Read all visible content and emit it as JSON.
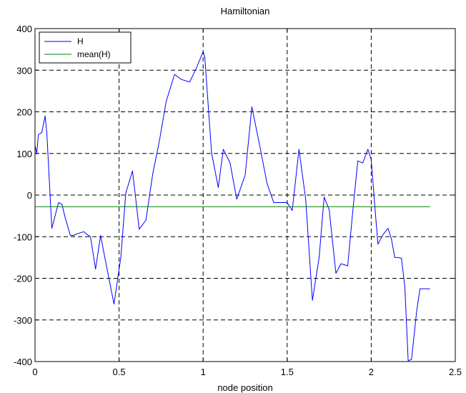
{
  "chart_data": {
    "type": "line",
    "title": "Hamiltonian",
    "xlabel": "node position",
    "ylabel": "",
    "xlim": [
      0,
      2.5
    ],
    "ylim": [
      -400,
      400
    ],
    "xticks": [
      0,
      0.5,
      1,
      1.5,
      2,
      2.5
    ],
    "yticks": [
      -400,
      -300,
      -200,
      -100,
      0,
      100,
      200,
      300,
      400
    ],
    "xtick_labels": [
      "0",
      "0.5",
      "1",
      "1.5",
      "2",
      "2.5"
    ],
    "ytick_labels": [
      "-400",
      "-300",
      "-200",
      "-100",
      "0",
      "100",
      "200",
      "300",
      "400"
    ],
    "grid": true,
    "legend_position": "top-left",
    "series": [
      {
        "name": "H",
        "color": "#0000ff",
        "x": [
          0,
          0.01,
          0.02,
          0.04,
          0.06,
          0.07,
          0.1,
          0.14,
          0.16,
          0.18,
          0.21,
          0.23,
          0.25,
          0.29,
          0.31,
          0.33,
          0.36,
          0.39,
          0.42,
          0.47,
          0.51,
          0.54,
          0.58,
          0.62,
          0.66,
          0.7,
          0.74,
          0.78,
          0.83,
          0.87,
          0.92,
          0.96,
          1.0,
          1.01,
          1.05,
          1.09,
          1.12,
          1.16,
          1.2,
          1.25,
          1.29,
          1.34,
          1.38,
          1.42,
          1.46,
          1.5,
          1.53,
          1.57,
          1.61,
          1.65,
          1.69,
          1.72,
          1.75,
          1.79,
          1.82,
          1.86,
          1.89,
          1.92,
          1.95,
          1.98,
          2.0,
          2.02,
          2.04,
          2.07,
          2.1,
          2.12,
          2.14,
          2.16,
          2.18,
          2.2,
          2.22,
          2.24,
          2.27,
          2.29,
          2.3,
          2.31,
          2.32,
          2.35
        ],
        "y": [
          120,
          100,
          145,
          150,
          190,
          150,
          -80,
          -18,
          -22,
          -55,
          -97,
          -97,
          -93,
          -88,
          -95,
          -100,
          -178,
          -97,
          -160,
          -262,
          -150,
          5,
          58,
          -82,
          -60,
          50,
          130,
          225,
          290,
          278,
          272,
          305,
          345,
          330,
          102,
          18,
          110,
          78,
          -10,
          48,
          212,
          112,
          28,
          -18,
          -18,
          -18,
          -37,
          110,
          -10,
          -253,
          -150,
          -5,
          -35,
          -188,
          -165,
          -170,
          -40,
          82,
          77,
          110,
          85,
          -20,
          -118,
          -95,
          -80,
          -105,
          -150,
          -150,
          -152,
          -220,
          -398,
          -395,
          -280,
          -225,
          -225,
          -225,
          -225,
          -225
        ]
      },
      {
        "name": "mean(H)",
        "color": "#008000",
        "x": [
          0,
          2.35
        ],
        "y": [
          -28,
          -28
        ]
      }
    ]
  }
}
